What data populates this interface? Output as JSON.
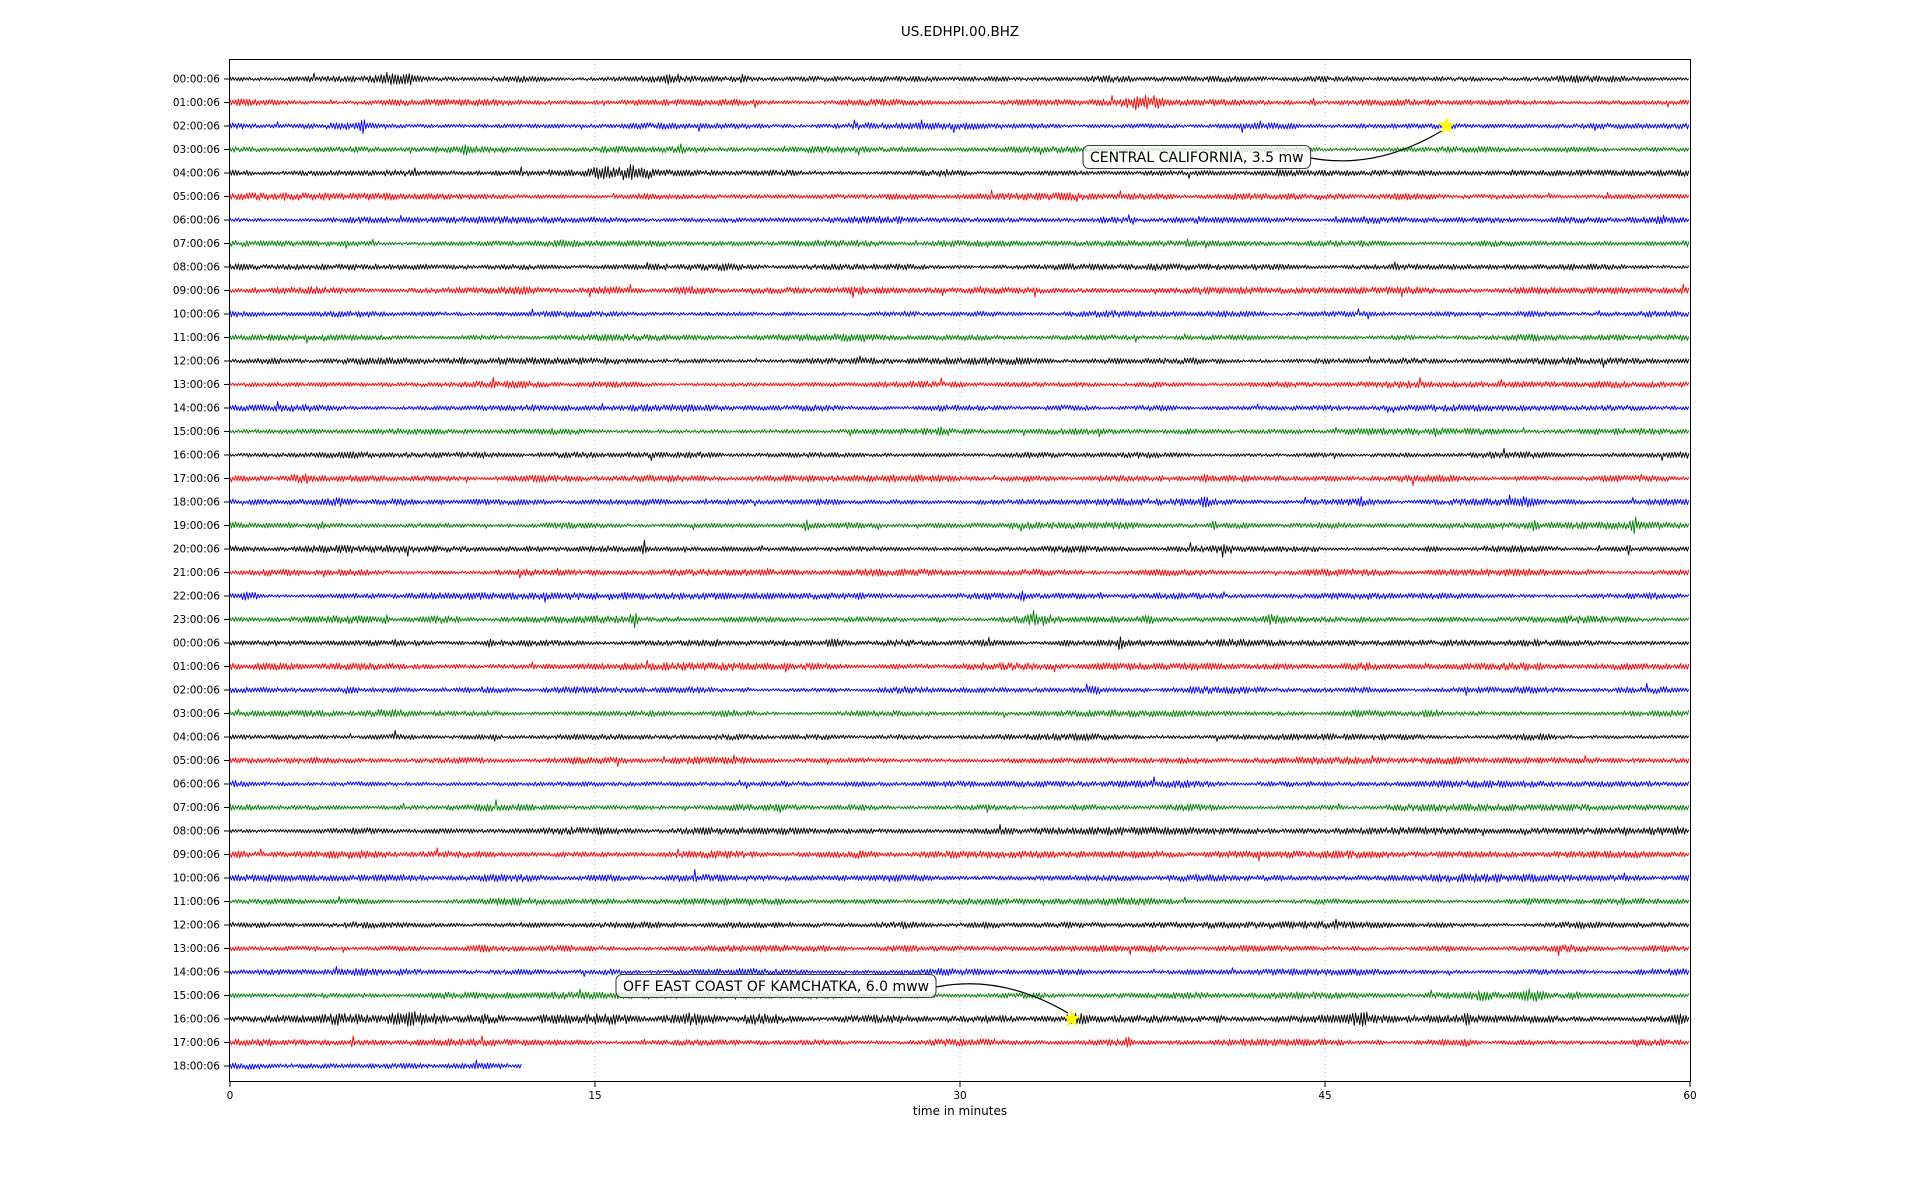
{
  "title": "US.EDHPI.00.BHZ",
  "colors": {
    "trace_cycle": [
      "#000000",
      "#ff0000",
      "#0000ff",
      "#008000"
    ],
    "star": "#ffff00",
    "grid": "#b0b0b0",
    "spine": "#000000",
    "annotation_box_fill": "rgba(255,255,255,0.78)",
    "annotation_box_border": "#3d3d3d",
    "text": "#000000"
  },
  "chart_data": {
    "type": "line",
    "subtype": "helicorder_dayplot",
    "title": "US.EDHPI.00.BHZ",
    "x": {
      "label": "time in minutes",
      "range": [
        0,
        60
      ],
      "ticks": [
        0,
        15,
        30,
        45,
        60
      ]
    },
    "grid_minutes": [
      15,
      30,
      45
    ],
    "interval_minutes": 60,
    "last_row_end_minute": 12,
    "rows": [
      {
        "label": "00:00:06",
        "color": "#000000"
      },
      {
        "label": "01:00:06",
        "color": "#ff0000"
      },
      {
        "label": "02:00:06",
        "color": "#0000ff"
      },
      {
        "label": "03:00:06",
        "color": "#008000"
      },
      {
        "label": "04:00:06",
        "color": "#000000"
      },
      {
        "label": "05:00:06",
        "color": "#ff0000"
      },
      {
        "label": "06:00:06",
        "color": "#0000ff"
      },
      {
        "label": "07:00:06",
        "color": "#008000"
      },
      {
        "label": "08:00:06",
        "color": "#000000"
      },
      {
        "label": "09:00:06",
        "color": "#ff0000"
      },
      {
        "label": "10:00:06",
        "color": "#0000ff"
      },
      {
        "label": "11:00:06",
        "color": "#008000"
      },
      {
        "label": "12:00:06",
        "color": "#000000"
      },
      {
        "label": "13:00:06",
        "color": "#ff0000"
      },
      {
        "label": "14:00:06",
        "color": "#0000ff"
      },
      {
        "label": "15:00:06",
        "color": "#008000"
      },
      {
        "label": "16:00:06",
        "color": "#000000"
      },
      {
        "label": "17:00:06",
        "color": "#ff0000"
      },
      {
        "label": "18:00:06",
        "color": "#0000ff"
      },
      {
        "label": "19:00:06",
        "color": "#008000"
      },
      {
        "label": "20:00:06",
        "color": "#000000"
      },
      {
        "label": "21:00:06",
        "color": "#ff0000"
      },
      {
        "label": "22:00:06",
        "color": "#0000ff"
      },
      {
        "label": "23:00:06",
        "color": "#008000"
      },
      {
        "label": "00:00:06",
        "color": "#000000"
      },
      {
        "label": "01:00:06",
        "color": "#ff0000"
      },
      {
        "label": "02:00:06",
        "color": "#0000ff"
      },
      {
        "label": "03:00:06",
        "color": "#008000"
      },
      {
        "label": "04:00:06",
        "color": "#000000"
      },
      {
        "label": "05:00:06",
        "color": "#ff0000"
      },
      {
        "label": "06:00:06",
        "color": "#0000ff"
      },
      {
        "label": "07:00:06",
        "color": "#008000"
      },
      {
        "label": "08:00:06",
        "color": "#000000"
      },
      {
        "label": "09:00:06",
        "color": "#ff0000"
      },
      {
        "label": "10:00:06",
        "color": "#0000ff"
      },
      {
        "label": "11:00:06",
        "color": "#008000"
      },
      {
        "label": "12:00:06",
        "color": "#000000"
      },
      {
        "label": "13:00:06",
        "color": "#ff0000"
      },
      {
        "label": "14:00:06",
        "color": "#0000ff"
      },
      {
        "label": "15:00:06",
        "color": "#008000"
      },
      {
        "label": "16:00:06",
        "color": "#000000"
      },
      {
        "label": "17:00:06",
        "color": "#ff0000"
      },
      {
        "label": "18:00:06",
        "color": "#0000ff"
      }
    ],
    "events": [
      {
        "label": "CENTRAL CALIFORNIA, 3.5 mw",
        "row_index": 2,
        "row_label": "02:00:06",
        "minute": 50.0
      },
      {
        "label": "OFF EAST COAST OF KAMCHATKA, 6.0 mww",
        "row_index": 40,
        "row_label": "16:00:06",
        "minute": 34.6
      }
    ],
    "row_base_amp": {
      "9": 3.0,
      "23": 3.0,
      "25": 3.0,
      "32": 2.9,
      "33": 3.2,
      "34": 3.1,
      "36": 2.9,
      "40": 3.0
    },
    "bursts": [
      [
        0,
        6.5,
        2.4,
        0.5
      ],
      [
        0,
        7.4,
        2.0,
        0.3
      ],
      [
        0,
        18.2,
        2.2,
        0.25
      ],
      [
        0,
        21.1,
        1.9,
        0.15
      ],
      [
        1,
        37.3,
        2.6,
        0.5
      ],
      [
        1,
        38.1,
        2.2,
        0.2
      ],
      [
        1,
        43.5,
        1.6,
        0.15
      ],
      [
        1,
        44.5,
        2.7,
        0.1
      ],
      [
        2,
        5.5,
        2.3,
        0.12
      ],
      [
        2,
        30.5,
        1.35,
        0.4
      ],
      [
        3,
        9.7,
        2.4,
        0.12
      ],
      [
        3,
        18.5,
        1.9,
        0.12
      ],
      [
        3,
        28.0,
        1.25,
        0.5
      ],
      [
        4,
        15.3,
        2.0,
        0.5
      ],
      [
        4,
        16.4,
        2.4,
        0.35
      ],
      [
        4,
        17.1,
        1.8,
        0.2
      ],
      [
        15,
        29.3,
        1.5,
        0.2
      ],
      [
        17,
        2.9,
        2.2,
        0.4
      ],
      [
        17,
        40.1,
        1.8,
        0.2
      ],
      [
        17,
        43.1,
        1.7,
        0.15
      ],
      [
        18,
        4.5,
        1.9,
        0.5
      ],
      [
        18,
        8.7,
        1.7,
        0.2
      ],
      [
        18,
        40.1,
        1.9,
        0.15
      ],
      [
        18,
        46.5,
        1.7,
        0.15
      ],
      [
        18,
        53.3,
        2.0,
        0.4
      ],
      [
        19,
        3.7,
        2.1,
        0.3
      ],
      [
        19,
        23.7,
        2.6,
        0.1
      ],
      [
        19,
        40.4,
        2.1,
        0.15
      ],
      [
        19,
        53.5,
        2.2,
        0.12
      ],
      [
        19,
        57.7,
        2.7,
        0.12
      ],
      [
        20,
        17.0,
        4.0,
        0.08
      ],
      [
        20,
        41.0,
        1.6,
        0.6
      ],
      [
        20,
        44.5,
        1.5,
        0.5
      ],
      [
        20,
        49.4,
        2.3,
        0.2
      ],
      [
        20,
        57.5,
        2.6,
        0.15
      ],
      [
        21,
        55.8,
        2.7,
        0.1
      ],
      [
        22,
        0.8,
        2.1,
        0.4
      ],
      [
        22,
        32.6,
        2.1,
        0.12
      ],
      [
        22,
        35.8,
        1.7,
        0.12
      ],
      [
        23,
        6.4,
        2.3,
        0.12
      ],
      [
        23,
        16.6,
        3.0,
        0.15
      ],
      [
        23,
        29.1,
        1.6,
        0.2
      ],
      [
        23,
        33.3,
        2.0,
        0.4
      ],
      [
        23,
        37.8,
        1.9,
        0.4
      ],
      [
        23,
        42.9,
        1.9,
        0.3
      ],
      [
        24,
        10.7,
        1.8,
        0.3
      ],
      [
        24,
        20.0,
        1.4,
        0.3
      ],
      [
        24,
        24.8,
        1.7,
        0.4
      ],
      [
        24,
        34.3,
        1.5,
        0.2
      ],
      [
        24,
        36.6,
        2.4,
        0.15
      ],
      [
        26,
        4.9,
        1.7,
        0.3
      ],
      [
        26,
        8.7,
        1.5,
        0.2
      ],
      [
        26,
        21.1,
        1.9,
        0.12
      ],
      [
        26,
        24.8,
        1.6,
        0.15
      ],
      [
        26,
        35.6,
        1.7,
        0.3
      ],
      [
        27,
        6.5,
        1.8,
        1.0
      ],
      [
        27,
        8.7,
        1.5,
        0.5
      ],
      [
        27,
        49.4,
        1.8,
        0.5
      ],
      [
        39,
        51.5,
        1.9,
        0.5
      ],
      [
        39,
        53.5,
        2.2,
        0.5
      ],
      [
        39,
        55.2,
        1.9,
        0.3
      ],
      [
        40,
        4.8,
        2.2,
        0.7
      ],
      [
        40,
        7.5,
        2.6,
        1.2
      ],
      [
        40,
        10.5,
        2.2,
        0.8
      ],
      [
        40,
        12.9,
        4.2,
        0.06
      ],
      [
        40,
        13.6,
        2.6,
        1.0
      ],
      [
        40,
        15.5,
        2.2,
        1.0
      ],
      [
        40,
        19.0,
        2.0,
        1.0
      ],
      [
        40,
        21.5,
        1.8,
        0.7
      ],
      [
        40,
        29.5,
        1.6,
        0.3
      ],
      [
        40,
        34.8,
        1.9,
        0.4
      ],
      [
        40,
        40.6,
        1.7,
        0.2
      ],
      [
        40,
        46.5,
        2.0,
        0.4
      ],
      [
        40,
        50.9,
        1.8,
        0.2
      ],
      [
        40,
        59.5,
        1.9,
        0.2
      ],
      [
        41,
        5.05,
        3.0,
        0.07
      ],
      [
        41,
        36.9,
        1.9,
        0.12
      ],
      [
        41,
        47.2,
        1.8,
        0.12
      ],
      [
        41,
        50.8,
        1.6,
        0.15
      ],
      [
        42,
        1.0,
        1.4,
        0.5
      ]
    ]
  }
}
